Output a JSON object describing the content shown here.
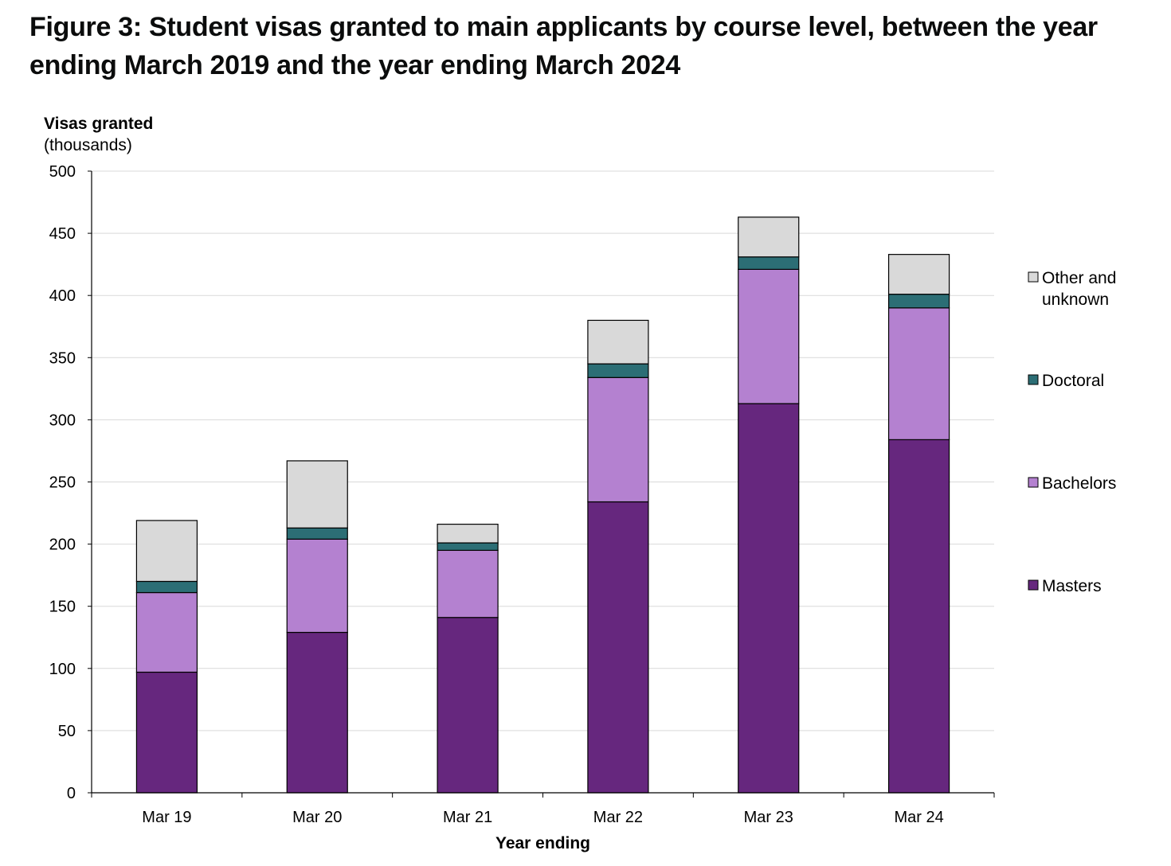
{
  "chart_data": {
    "type": "bar",
    "stacked": true,
    "title": "Figure 3: Student visas granted to main applicants by course level, between the year ending March 2019 and the year ending March 2024",
    "ylabel": "Visas granted",
    "ylabel_unit": "(thousands)",
    "xlabel": "Year ending",
    "ylim": [
      0,
      500
    ],
    "yticks": [
      0,
      50,
      100,
      150,
      200,
      250,
      300,
      350,
      400,
      450,
      500
    ],
    "grid": true,
    "legend_position": "right",
    "categories": [
      "Mar 19",
      "Mar 20",
      "Mar 21",
      "Mar 22",
      "Mar 23",
      "Mar 24"
    ],
    "series": [
      {
        "name": "Masters",
        "color": "#66277e",
        "values": [
          97,
          129,
          141,
          234,
          313,
          284
        ]
      },
      {
        "name": "Bachelors",
        "color": "#b481d0",
        "values": [
          64,
          75,
          54,
          100,
          108,
          106
        ]
      },
      {
        "name": "Doctoral",
        "color": "#2c6e75",
        "values": [
          9,
          9,
          6,
          11,
          10,
          11
        ]
      },
      {
        "name": "Other and unknown",
        "color": "#d9d9d9",
        "values": [
          49,
          54,
          15,
          35,
          32,
          32
        ]
      }
    ]
  }
}
